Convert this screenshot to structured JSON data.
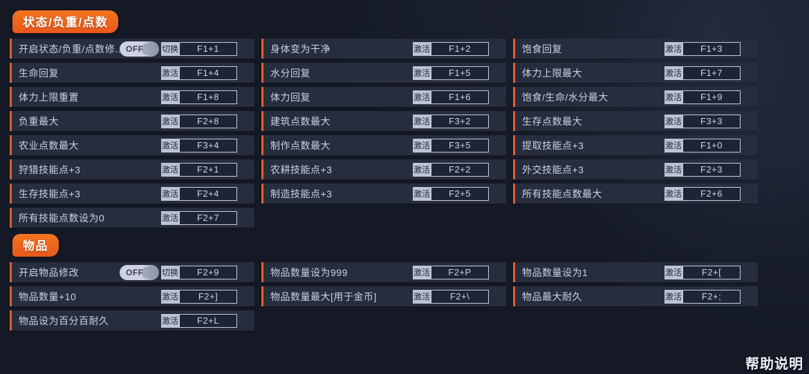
{
  "theme": {
    "bg": "#151926",
    "row_bg": "#282d3e",
    "row_accent": "#e4602b",
    "text": "#cdd1e2",
    "badge_bg": "#bfc3d6",
    "badge_text": "#20253a",
    "hotkey_border": "#c8ccde",
    "header_bg": "#f2751f",
    "header_bg2": "#e8581c",
    "help_text": "#eef1f8",
    "toggle_bg": "#ced2e4",
    "toggle_knob": "#9094a8"
  },
  "sections": [
    {
      "title": "状态/负重/点数",
      "columns": [
        [
          {
            "label": "开启状态/负重/点数修...",
            "type": "toggle",
            "toggle_state": "OFF",
            "action": "切换",
            "hotkey": "F1+1"
          },
          {
            "label": "生命回复",
            "action": "激活",
            "hotkey": "F1+4"
          },
          {
            "label": "体力上限重置",
            "action": "激活",
            "hotkey": "F1+8"
          },
          {
            "label": "负重最大",
            "action": "激活",
            "hotkey": "F2+8"
          },
          {
            "label": "农业点数最大",
            "action": "激活",
            "hotkey": "F3+4"
          },
          {
            "label": "狩猎技能点+3",
            "action": "激活",
            "hotkey": "F2+1"
          },
          {
            "label": "生存技能点+3",
            "action": "激活",
            "hotkey": "F2+4"
          },
          {
            "label": "所有技能点数设为0",
            "action": "激活",
            "hotkey": "F2+7"
          }
        ],
        [
          {
            "label": "身体变为干净",
            "action": "激活",
            "hotkey": "F1+2"
          },
          {
            "label": "水分回复",
            "action": "激活",
            "hotkey": "F1+5"
          },
          {
            "label": "体力回复",
            "action": "激活",
            "hotkey": "F1+6"
          },
          {
            "label": "建筑点数最大",
            "action": "激活",
            "hotkey": "F3+2"
          },
          {
            "label": "制作点数最大",
            "action": "激活",
            "hotkey": "F3+5"
          },
          {
            "label": "农耕技能点+3",
            "action": "激活",
            "hotkey": "F2+2"
          },
          {
            "label": "制造技能点+3",
            "action": "激活",
            "hotkey": "F2+5"
          }
        ],
        [
          {
            "label": "饱食回复",
            "action": "激活",
            "hotkey": "F1+3"
          },
          {
            "label": "体力上限最大",
            "action": "激活",
            "hotkey": "F1+7"
          },
          {
            "label": "饱食/生命/水分最大",
            "action": "激活",
            "hotkey": "F1+9"
          },
          {
            "label": "生存点数最大",
            "action": "激活",
            "hotkey": "F3+3"
          },
          {
            "label": "提取技能点+3",
            "action": "激活",
            "hotkey": "F1+0"
          },
          {
            "label": "外交技能点+3",
            "action": "激活",
            "hotkey": "F2+3"
          },
          {
            "label": "所有技能点数最大",
            "action": "激活",
            "hotkey": "F2+6"
          }
        ]
      ]
    },
    {
      "title": "物品",
      "columns": [
        [
          {
            "label": "开启物品修改",
            "type": "toggle",
            "toggle_state": "OFF",
            "action": "切换",
            "hotkey": "F2+9"
          },
          {
            "label": "物品数量+10",
            "action": "激活",
            "hotkey": "F2+]"
          },
          {
            "label": "物品设为百分百耐久",
            "action": "激活",
            "hotkey": "F2+L"
          }
        ],
        [
          {
            "label": "物品数量设为999",
            "action": "激活",
            "hotkey": "F2+P"
          },
          {
            "label": "物品数量最大[用于金币]",
            "action": "激活",
            "hotkey": "F2+\\"
          }
        ],
        [
          {
            "label": "物品数量设为1",
            "action": "激活",
            "hotkey": "F2+["
          },
          {
            "label": "物品最大耐久",
            "action": "激活",
            "hotkey": "F2+;"
          }
        ]
      ]
    }
  ],
  "footer": {
    "help_label": "帮助说明"
  }
}
